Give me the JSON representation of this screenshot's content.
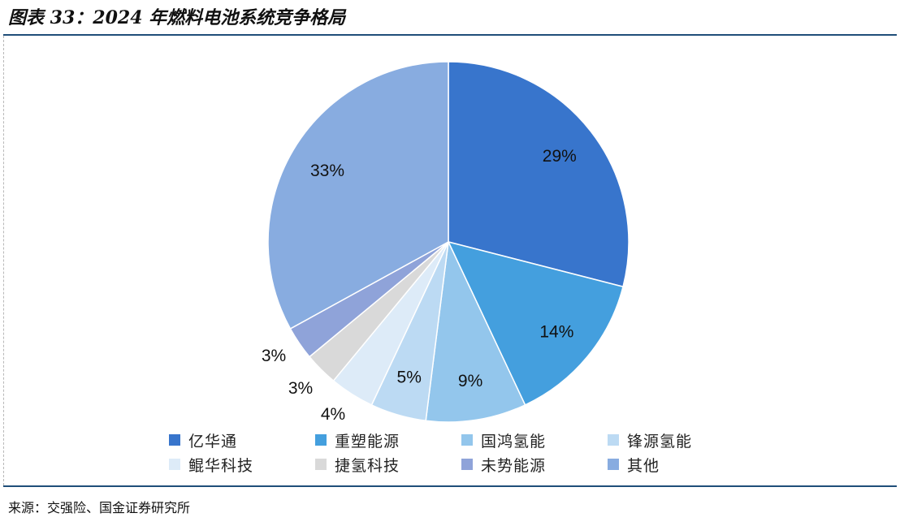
{
  "header": {
    "title": "图表 33：2024 年燃料电池系统竞争格局"
  },
  "footer": {
    "source": "来源：交强险、国金证券研究所"
  },
  "chart_data": {
    "type": "pie",
    "title": "图表 33：2024 年燃料电池系统竞争格局",
    "legend_position": "bottom",
    "start_angle": "12 o'clock",
    "direction": "clockwise",
    "categories": [
      "亿华通",
      "重塑能源",
      "国鸿氢能",
      "锋源氢能",
      "鲲华科技",
      "捷氢科技",
      "未势能源",
      "其他"
    ],
    "values": [
      29,
      14,
      9,
      5,
      4,
      3,
      3,
      33
    ],
    "labels": [
      "29%",
      "14%",
      "9%",
      "5%",
      "4%",
      "3%",
      "3%",
      "33%"
    ],
    "colors": [
      "#3875cc",
      "#449fde",
      "#93c6ec",
      "#bcdaf3",
      "#ddebf8",
      "#d9d9d9",
      "#8fa3d9",
      "#88ace0"
    ]
  }
}
